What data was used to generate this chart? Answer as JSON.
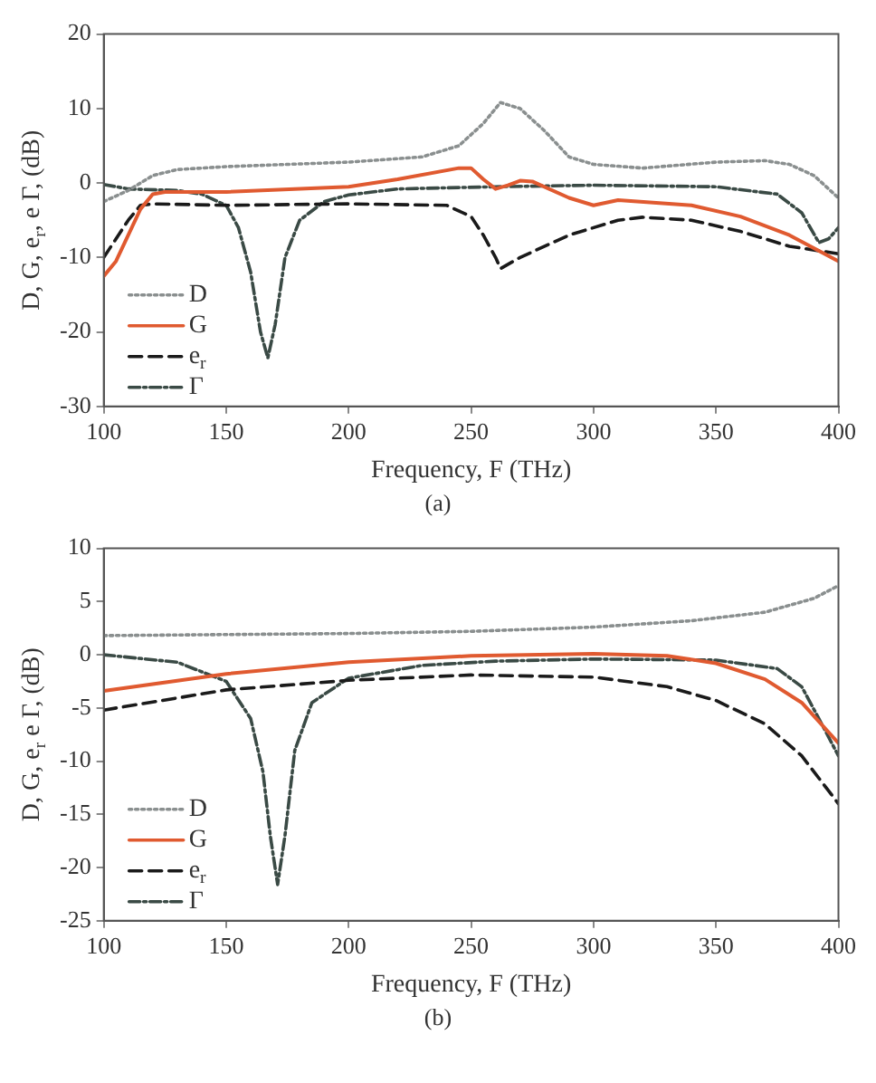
{
  "chart_data": [
    {
      "type": "line",
      "xlabel": "Frequency, F (THz)",
      "ylabel": "D, G, e$_{r}$, e Γ, (dB)",
      "annotations": [
        "(a)"
      ],
      "xlim": [
        100,
        400
      ],
      "xticks": [
        100,
        150,
        200,
        250,
        300,
        350,
        400
      ],
      "ylim": [
        -30,
        20
      ],
      "yticks": [
        -30,
        -20,
        -10,
        0,
        10,
        20
      ],
      "legend": "bottom left",
      "series": [
        {
          "name": "D",
          "color": "#8a8f8f",
          "line_style": "dotted",
          "x": [
            100,
            110,
            120,
            130,
            150,
            200,
            230,
            245,
            255,
            262,
            270,
            280,
            290,
            300,
            320,
            350,
            370,
            380,
            390,
            400
          ],
          "values": [
            -2.5,
            -1,
            1,
            1.8,
            2.2,
            2.8,
            3.5,
            5,
            8,
            10.8,
            10,
            7,
            3.5,
            2.5,
            2,
            2.8,
            3,
            2.5,
            1,
            -2
          ]
        },
        {
          "name": "G",
          "color": "#e05a30",
          "line_style": "solid",
          "x": [
            100,
            105,
            110,
            115,
            120,
            125,
            150,
            200,
            220,
            245,
            250,
            255,
            260,
            265,
            270,
            275,
            290,
            300,
            310,
            340,
            360,
            380,
            400
          ],
          "values": [
            -12.5,
            -10.5,
            -7,
            -3.5,
            -1.5,
            -1.2,
            -1.2,
            -0.5,
            0.5,
            2,
            2,
            0.5,
            -0.8,
            -0.3,
            0.3,
            0.2,
            -2,
            -3,
            -2.3,
            -3,
            -4.5,
            -7,
            -10.5
          ]
        },
        {
          "name": "e$_{r}$",
          "color": "#1a1a1a",
          "line_style": "dashed",
          "x": [
            100,
            110,
            115,
            120,
            150,
            200,
            240,
            250,
            255,
            260,
            262,
            270,
            290,
            310,
            320,
            340,
            360,
            380,
            400
          ],
          "values": [
            -10,
            -5,
            -3,
            -2.8,
            -3,
            -2.8,
            -3,
            -4.5,
            -7,
            -10,
            -11.5,
            -10,
            -7,
            -5,
            -4.6,
            -5,
            -6.5,
            -8.5,
            -9.5
          ]
        },
        {
          "name": "Γ",
          "color": "#3a4a45",
          "line_style": "dashdot",
          "x": [
            100,
            110,
            130,
            140,
            150,
            155,
            160,
            164,
            167,
            170,
            174,
            180,
            190,
            200,
            220,
            260,
            300,
            350,
            375,
            385,
            392,
            396,
            400
          ],
          "values": [
            -0.2,
            -0.8,
            -1,
            -1.5,
            -3,
            -6,
            -12,
            -20,
            -23.5,
            -19,
            -10,
            -5,
            -2.5,
            -1.6,
            -0.8,
            -0.5,
            -0.3,
            -0.5,
            -1.5,
            -4,
            -8,
            -7.5,
            -6
          ]
        }
      ]
    },
    {
      "type": "line",
      "xlabel": "Frequency, F (THz)",
      "ylabel": "D, G, e$_{r}$ e Γ, (dB)",
      "annotations": [
        "(b)"
      ],
      "xlim": [
        100,
        400
      ],
      "xticks": [
        100,
        150,
        200,
        250,
        300,
        350,
        400
      ],
      "ylim": [
        -25,
        10
      ],
      "yticks": [
        -25,
        -20,
        -15,
        -10,
        -5,
        0,
        5,
        10
      ],
      "legend": "bottom left",
      "series": [
        {
          "name": "D",
          "color": "#8a8f8f",
          "line_style": "dotted",
          "x": [
            100,
            200,
            250,
            300,
            340,
            370,
            390,
            400
          ],
          "values": [
            1.8,
            2,
            2.2,
            2.6,
            3.2,
            4,
            5.3,
            6.5
          ]
        },
        {
          "name": "G",
          "color": "#e05a30",
          "line_style": "solid",
          "x": [
            100,
            150,
            200,
            250,
            300,
            330,
            350,
            370,
            385,
            400
          ],
          "values": [
            -3.4,
            -1.8,
            -0.7,
            -0.1,
            0.1,
            -0.1,
            -0.8,
            -2.3,
            -4.5,
            -8.3
          ]
        },
        {
          "name": "e$_{r}$",
          "color": "#1a1a1a",
          "line_style": "dashed",
          "x": [
            100,
            150,
            200,
            250,
            300,
            330,
            350,
            370,
            385,
            400
          ],
          "values": [
            -5.2,
            -3.3,
            -2.4,
            -1.9,
            -2.1,
            -3,
            -4.3,
            -6.5,
            -9.5,
            -14
          ]
        },
        {
          "name": "Γ",
          "color": "#3a4a45",
          "line_style": "dashdot",
          "x": [
            100,
            130,
            150,
            160,
            165,
            168,
            171,
            174,
            178,
            185,
            200,
            230,
            260,
            300,
            350,
            375,
            385,
            392,
            400
          ],
          "values": [
            0,
            -0.7,
            -2.5,
            -6,
            -11,
            -17,
            -21.6,
            -17,
            -9,
            -4.5,
            -2.2,
            -1,
            -0.6,
            -0.4,
            -0.5,
            -1.3,
            -3,
            -6,
            -9.5
          ]
        }
      ]
    }
  ]
}
